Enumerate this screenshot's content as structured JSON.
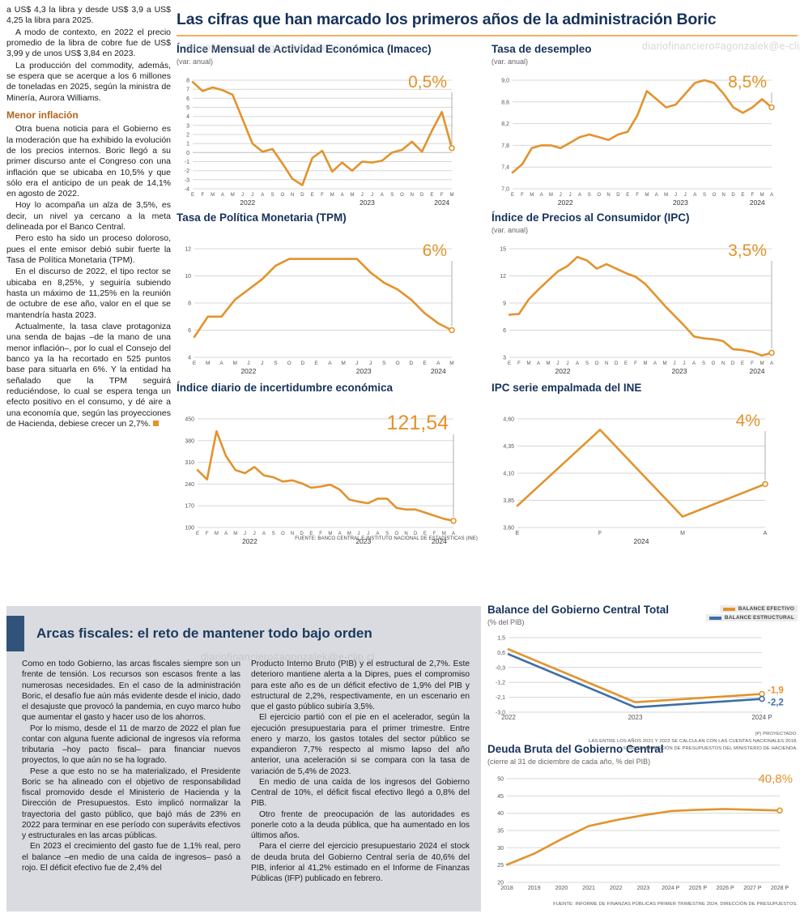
{
  "watermark": "diariofinanciero#agonzalek@e-clip.cl",
  "colors": {
    "accent_orange": "#E2932D",
    "navy": "#16325B",
    "blue": "#3D6FA6",
    "panel_gray": "#D9DBE0"
  },
  "left_column": {
    "paragraphs": [
      "a US$ 4,3 la libra y desde US$ 3,9 a US$ 4,25 la libra para 2025.",
      "A modo de contexto, en 2022 el precio promedio de la libra de cobre fue de US$ 3,99 y de unos US$ 3,84 en 2023.",
      "La producción del commodity, además, se espera que se acerque a los 6 millones de toneladas en 2025, según la ministra de Minería, Aurora Williams."
    ],
    "subhead": "Menor inflación",
    "paragraphs2": [
      "Otra buena noticia para el Gobierno es la moderación que ha exhibido la evolución de los precios internos. Boric llegó a su primer discurso ante el Congreso con una inflación que se ubicaba en 10,5% y que sólo era el anticipo de un peak de 14,1% en agosto de 2022.",
      "Hoy lo acompaña un alza de 3,5%, es decir, un nivel ya cercano a la meta delineada por el Banco Central.",
      "Pero esto ha sido un proceso doloroso, pues el ente emisor debió subir fuerte la Tasa de Política Monetaria (TPM).",
      "En el discurso de 2022, el tipo rector se ubicaba en 8,25%, y seguiría subiendo hasta un máximo de 11,25% en la reunión de octubre de ese año, valor en el que se mantendría hasta 2023.",
      "Actualmente, la tasa clave protagoniza una senda de bajas –de la mano de una menor inflación–, por lo cual el Consejo del banco ya la ha recortado en 525 puntos base para situarla en 6%. Y la entidad ha señalado que la TPM seguirá reduciéndose, lo cual se espera tenga un efecto positivo en el consumo, y dé aire a una economía que, según las proyecciones de Hacienda, debiese crecer un 2,7%."
    ]
  },
  "main": {
    "title": "Las cifras que han marcado los primeros años de la administración Boric",
    "source_note": "FUENTE: BANCO CENTRAL E INSTITUTO NACIONAL DE ESTADÍSTICAS (INE)"
  },
  "fiscal": {
    "headline": "Arcas fiscales: el reto de mantener todo bajo orden",
    "col1": [
      "Como en todo Gobierno, las arcas fiscales siempre son un frente de tensión. Los recursos son escasos frente a las numerosas necesidades. En el caso de la administración Boric, el desafío fue aún más evidente desde el inicio, dado el desajuste que provocó la pandemia, en cuyo marco hubo que aumentar el gasto y hacer uso de los ahorros.",
      "Por lo mismo, desde el 11 de marzo de 2022 el plan fue contar con alguna fuente adicional de ingresos vía reforma tributaria –hoy pacto fiscal– para financiar nuevos proyectos, lo que aún no se ha logrado.",
      "Pese a que esto no se ha materializado, el Presidente Boric se ha alineado con el objetivo de responsabilidad fiscal promovido desde el Ministerio de Hacienda y la Dirección de Presupuestos. Esto implicó normalizar la trayectoria del gasto público, que bajó más de 23% en 2022 para terminar en ese período con superávits efectivos y estructurales en las arcas públicas.",
      "En 2023 el crecimiento del gasto fue de 1,1% real, pero el balance –en medio de una caída de ingresos– pasó a rojo. El déficit efectivo fue de 2,4% del"
    ],
    "col2": [
      "Producto Interno Bruto (PIB) y el estructural de 2,7%. Este deterioro mantiene alerta a la Dipres, pues el compromiso para este año es de un déficit efectivo de 1,9% del PIB y estructural de 2,2%, respectivamente, en un escenario en que el gasto público subiría 3,5%.",
      "El ejercicio partió con el pie en el acelerador, según la ejecución presupuestaria para el primer trimestre. Entre enero y marzo, los gastos totales del sector público se expandieron 7,7% respecto al mismo lapso del año anterior, una aceleración si se compara con la tasa de variación de 5,4% de 2023.",
      "En medio de una caída de los ingresos del Gobierno Central de 10%, el déficit fiscal efectivo llegó a 0,8% del PIB.",
      "Otro frente de preocupación de las autoridades es ponerle coto a la deuda pública, que ha aumentado en los últimos años.",
      "Para el cierre del ejercicio presupuestario 2024 el stock de deuda bruta del Gobierno Central sería de 40,6% del PIB, inferior al 41,2% estimado en el Informe de Finanzas Públicas (IFP) publicado en febrero."
    ]
  },
  "chart_data": [
    {
      "id": "imacec",
      "type": "line",
      "title": "Índice Mensual de Actividad Económica (Imacec)",
      "subtitle": "(var. anual)",
      "callout": "0,5%",
      "callout_color": "#E2932D",
      "color": "#E2932D",
      "ylim": [
        -4,
        8
      ],
      "ytick_vals": [
        8,
        7,
        6,
        5,
        4,
        3,
        2,
        1,
        0,
        -1,
        -2,
        -3,
        -4
      ],
      "ytick_labels": [
        "8",
        "7",
        "6",
        "5",
        "4",
        "3",
        "2",
        "1",
        "0",
        "-1",
        "-2",
        "-3",
        "-4"
      ],
      "x": [
        "E",
        "F",
        "M",
        "A",
        "M",
        "J",
        "J",
        "A",
        "S",
        "O",
        "N",
        "D",
        "E",
        "F",
        "M",
        "A",
        "M",
        "J",
        "J",
        "A",
        "S",
        "O",
        "N",
        "D",
        "E",
        "F",
        "M"
      ],
      "years": [
        {
          "label": "2022",
          "at": 5.5
        },
        {
          "label": "2023",
          "at": 17.5
        },
        {
          "label": "2024",
          "at": 25
        }
      ],
      "values": [
        7.8,
        6.8,
        7.2,
        6.9,
        6.4,
        3.7,
        1.0,
        0.1,
        0.4,
        -1.2,
        -2.9,
        -3.6,
        -0.6,
        0.2,
        -2.1,
        -1.1,
        -2.0,
        -1.0,
        -1.1,
        -0.9,
        0.0,
        0.3,
        1.2,
        0.1,
        2.4,
        4.5,
        0.5
      ]
    },
    {
      "id": "desempleo",
      "type": "line",
      "title": "Tasa de desempleo",
      "subtitle": "(var. anual)",
      "callout": "8,5%",
      "callout_color": "#E2932D",
      "color": "#E2932D",
      "ylim": [
        7.0,
        9.0
      ],
      "ytick_vals": [
        9.0,
        8.6,
        8.2,
        7.8,
        7.4,
        7.0
      ],
      "ytick_labels": [
        "9,0",
        "8,6",
        "8,2",
        "7,8",
        "7,4",
        "7,0"
      ],
      "x": [
        "E",
        "F",
        "M",
        "A",
        "M",
        "J",
        "J",
        "A",
        "S",
        "O",
        "N",
        "D",
        "E",
        "F",
        "M",
        "A",
        "M",
        "J",
        "J",
        "A",
        "S",
        "O",
        "N",
        "D",
        "E",
        "F",
        "M",
        "A"
      ],
      "years": [
        {
          "label": "2022",
          "at": 5.5
        },
        {
          "label": "2023",
          "at": 17.5
        },
        {
          "label": "2024",
          "at": 25.5
        }
      ],
      "values": [
        7.3,
        7.45,
        7.75,
        7.8,
        7.8,
        7.75,
        7.85,
        7.95,
        8.0,
        7.95,
        7.9,
        8.0,
        8.05,
        8.35,
        8.8,
        8.65,
        8.5,
        8.55,
        8.75,
        8.95,
        9.0,
        8.95,
        8.75,
        8.5,
        8.4,
        8.5,
        8.65,
        8.5
      ]
    },
    {
      "id": "tpm",
      "type": "line",
      "title": "Tasa de Política Monetaria (TPM)",
      "callout": "6%",
      "callout_color": "#E2932D",
      "color": "#E2932D",
      "ylim": [
        4,
        12
      ],
      "ytick_vals": [
        12,
        10,
        8,
        6,
        4
      ],
      "ytick_labels": [
        "12",
        "10",
        "8",
        "6",
        "4"
      ],
      "x": [
        "E",
        "M",
        "A",
        "M",
        "J",
        "J",
        "S",
        "O",
        "D",
        "E",
        "A",
        "M",
        "J",
        "J",
        "S",
        "O",
        "D",
        "E",
        "A",
        "M"
      ],
      "years": [
        {
          "label": "2022",
          "at": 4
        },
        {
          "label": "2023",
          "at": 12.5
        },
        {
          "label": "2024",
          "at": 18
        }
      ],
      "values": [
        5.5,
        7.0,
        7.0,
        8.25,
        9.0,
        9.75,
        10.75,
        11.25,
        11.25,
        11.25,
        11.25,
        11.25,
        11.25,
        10.25,
        9.5,
        9.0,
        8.25,
        7.25,
        6.5,
        6.0
      ]
    },
    {
      "id": "ipc",
      "type": "line",
      "title": "Índice de Precios al Consumidor (IPC)",
      "subtitle": "(var. anual)",
      "callout": "3,5%",
      "callout_color": "#E2932D",
      "color": "#E2932D",
      "ylim": [
        3,
        15
      ],
      "ytick_vals": [
        15,
        12,
        9,
        6,
        3
      ],
      "ytick_labels": [
        "15",
        "12",
        "9",
        "6",
        "3"
      ],
      "x": [
        "E",
        "F",
        "M",
        "A",
        "M",
        "J",
        "J",
        "A",
        "S",
        "O",
        "N",
        "D",
        "E",
        "F",
        "M",
        "A",
        "M",
        "J",
        "J",
        "A",
        "S",
        "O",
        "N",
        "D",
        "E",
        "F",
        "M",
        "A"
      ],
      "years": [
        {
          "label": "2022",
          "at": 5.5
        },
        {
          "label": "2023",
          "at": 17.5
        },
        {
          "label": "2024",
          "at": 25.5
        }
      ],
      "values": [
        7.7,
        7.8,
        9.4,
        10.5,
        11.5,
        12.5,
        13.1,
        14.1,
        13.7,
        12.8,
        13.3,
        12.8,
        12.3,
        11.9,
        11.1,
        9.9,
        8.7,
        7.6,
        6.5,
        5.3,
        5.1,
        5.0,
        4.8,
        3.9,
        3.8,
        3.6,
        3.2,
        3.5
      ]
    },
    {
      "id": "incertidumbre",
      "type": "line",
      "title": "Índice diario de incertidumbre económica",
      "callout": "121,54",
      "callout_color": "#E2932D",
      "color": "#E2932D",
      "ylim": [
        100,
        450
      ],
      "ytick_vals": [
        450,
        380,
        310,
        240,
        170,
        100
      ],
      "ytick_labels": [
        "450",
        "380",
        "310",
        "240",
        "170",
        "100"
      ],
      "x": [
        "E",
        "F",
        "M",
        "A",
        "M",
        "J",
        "J",
        "A",
        "S",
        "O",
        "N",
        "D",
        "E",
        "F",
        "M",
        "A",
        "M",
        "J",
        "J",
        "A",
        "S",
        "O",
        "N",
        "D",
        "E",
        "F",
        "M",
        "A"
      ],
      "years": [
        {
          "label": "2022",
          "at": 5.5
        },
        {
          "label": "2023",
          "at": 17.5
        },
        {
          "label": "2024",
          "at": 25.5
        }
      ],
      "values": [
        285,
        255,
        410,
        330,
        285,
        275,
        295,
        268,
        262,
        248,
        252,
        242,
        228,
        232,
        238,
        222,
        190,
        183,
        178,
        193,
        193,
        163,
        158,
        158,
        148,
        138,
        128,
        121.54
      ]
    },
    {
      "id": "ipc_empalmada",
      "type": "line",
      "title": "IPC serie empalmada del INE",
      "callout": "4%",
      "callout_color": "#E2932D",
      "color": "#E2932D",
      "ylim": [
        3.6,
        4.6
      ],
      "ytick_vals": [
        4.6,
        4.35,
        4.1,
        3.85,
        3.6
      ],
      "ytick_labels": [
        "4,60",
        "4,35",
        "4,10",
        "3,85",
        "3,60"
      ],
      "x": [
        "E",
        "F",
        "M",
        "A"
      ],
      "years": [
        {
          "label": "2024",
          "at": 1.5
        }
      ],
      "values": [
        3.8,
        4.5,
        3.7,
        4.0
      ]
    },
    {
      "id": "balance",
      "type": "line",
      "title": "Balance del Gobierno Central Total",
      "subtitle": "(% del PIB)",
      "ylim": [
        -3.0,
        1.5
      ],
      "ytick_vals": [
        1.5,
        0.6,
        -0.3,
        -1.2,
        -2.1,
        -3.0
      ],
      "ytick_labels": [
        "1,5",
        "0,6",
        "-0,3",
        "-1,2",
        "-2,1",
        "-3,0"
      ],
      "x": [
        "2022",
        "2023",
        "2024 P"
      ],
      "series": [
        {
          "name": "BALANCE EFECTIVO",
          "color": "#E2932D",
          "values": [
            0.8,
            -2.4,
            -1.9
          ]
        },
        {
          "name": "BALANCE ESTRUCTURAL",
          "color": "#3D6FA6",
          "values": [
            0.5,
            -2.7,
            -2.2
          ]
        }
      ],
      "end_labels": [
        "-1,9",
        "-2,2"
      ],
      "footnotes": [
        "(P) PROYECTADO.",
        "LAS ENTRE LOS AÑOS 2021 Y 2023 SE CALCULAN  CON LAS CUENTAS NACIONALES 2018.",
        "FUENTE: DIRECCIÓN DE PRESUPUESTOS DEL MINISTERIO DE HACIENDA."
      ]
    },
    {
      "id": "deuda",
      "type": "line",
      "title": "Deuda Bruta del Gobierno Central",
      "subtitle": "(cierre al 31 de diciembre de cada año, % del PIB)",
      "callout": "40,8%",
      "callout_color": "#E2932D",
      "color": "#E2932D",
      "ylim": [
        20,
        50
      ],
      "ytick_vals": [
        50,
        45,
        40,
        35,
        30,
        25,
        20
      ],
      "ytick_labels": [
        "50",
        "45",
        "40",
        "35",
        "30",
        "25",
        "20"
      ],
      "x": [
        "2018",
        "2019",
        "2020",
        "2021",
        "2022",
        "2023",
        "2024 P",
        "2025 P",
        "2026 P",
        "2027 P",
        "2028 P"
      ],
      "years": [],
      "values": [
        25.1,
        28.3,
        32.5,
        36.3,
        38.0,
        39.4,
        40.6,
        41.0,
        41.2,
        41.0,
        40.8
      ],
      "footnotes": [
        "FUENTE: INFORME DE FINANZAS PÚBLICAS PRIMER TRIMESTRE 2024, DIRECCIÓN DE PRESUPUESTOS."
      ]
    }
  ]
}
